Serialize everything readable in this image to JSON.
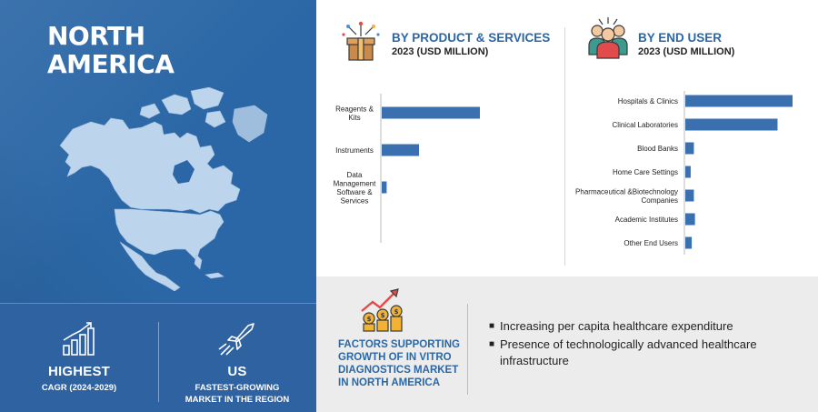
{
  "region": {
    "title_line1": "NORTH",
    "title_line2": "AMERICA"
  },
  "stats": [
    {
      "icon": "growth-bar-chart-icon",
      "big": "HIGHEST",
      "small_line1": "CAGR (2024-2029)",
      "small_line2": ""
    },
    {
      "icon": "rocket-icon",
      "big": "US",
      "small_line1": "FASTEST-GROWING",
      "small_line2": "MARKET IN THE REGION"
    }
  ],
  "colors": {
    "panel_blue": "#2b67a6",
    "bar_blue": "#3a6fb0",
    "factors_bg": "#ececec"
  },
  "chart_data": [
    {
      "type": "bar",
      "orientation": "horizontal",
      "title": "BY PRODUCT & SERVICES",
      "subtitle": "2023 (USD MILLION)",
      "icon": "gift-box-icon",
      "categories": [
        "Reagents & Kits",
        "Instruments",
        "Data Management Software & Services"
      ],
      "category_lines": [
        [
          "Reagents &",
          "Kits"
        ],
        [
          "Instruments"
        ],
        [
          "Data",
          "Management",
          "Software &",
          "Services"
        ]
      ],
      "values": [
        100,
        38,
        5
      ],
      "xlim": [
        0,
        100
      ],
      "value_note": "relative bar lengths; values not printed"
    },
    {
      "type": "bar",
      "orientation": "horizontal",
      "title": "BY END USER",
      "subtitle": "2023 (USD MILLION)",
      "icon": "people-group-icon",
      "categories": [
        "Hospitals & Clinics",
        "Clinical Laboratories",
        "Blood Banks",
        "Home Care Settings",
        "Pharmaceutical &Biotechnology Companies",
        "Academic Institutes",
        "Other End Users"
      ],
      "category_lines": [
        [
          "Hospitals & Clinics"
        ],
        [
          "Clinical Laboratories"
        ],
        [
          "Blood Banks"
        ],
        [
          "Home Care Settings"
        ],
        [
          "Pharmaceutical &Biotechnology",
          "Companies"
        ],
        [
          "Academic Institutes"
        ],
        [
          "Other End Users"
        ]
      ],
      "values": [
        100,
        86,
        8,
        5,
        8,
        9,
        6
      ],
      "xlim": [
        0,
        100
      ],
      "value_note": "relative bar lengths; values not printed"
    }
  ],
  "factors": {
    "icon": "money-growth-icon",
    "title": "FACTORS SUPPORTING GROWTH OF IN VITRO DIAGNOSTICS MARKET IN NORTH AMERICA",
    "items": [
      "Increasing per capita healthcare expenditure",
      "Presence of technologically advanced healthcare infrastructure"
    ]
  }
}
